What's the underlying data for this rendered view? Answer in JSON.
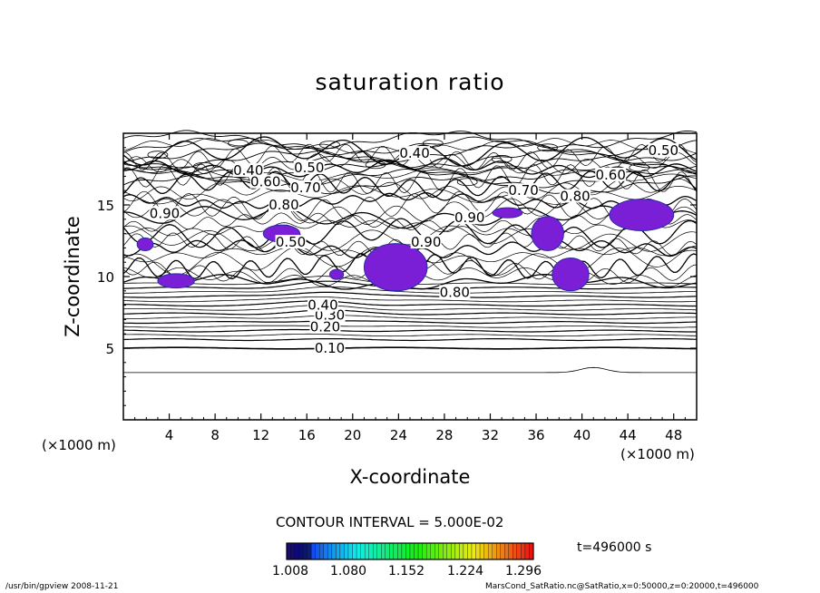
{
  "chart_data": {
    "type": "heatmap",
    "title": "saturation ratio",
    "xlabel": "X-coordinate",
    "ylabel": "Z-coordinate",
    "xunit": "(×1000 m)",
    "xlim": [
      0,
      50
    ],
    "ylim": [
      0,
      20
    ],
    "xticks": [
      4,
      8,
      12,
      16,
      20,
      24,
      28,
      32,
      36,
      40,
      44,
      48
    ],
    "yticks": [
      5,
      10,
      15
    ],
    "contour_interval_text": "CONTOUR INTERVAL = 5.000E-02",
    "time_text": "t=496000 s",
    "contour_labels": [
      {
        "text": "0.10",
        "x": 18.0,
        "y": 5.0
      },
      {
        "text": "0.20",
        "x": 17.6,
        "y": 6.5
      },
      {
        "text": "0.30",
        "x": 18.0,
        "y": 7.3
      },
      {
        "text": "0.40",
        "x": 17.4,
        "y": 8.0
      },
      {
        "text": "0.40",
        "x": 10.9,
        "y": 17.4
      },
      {
        "text": "0.40",
        "x": 25.4,
        "y": 18.6
      },
      {
        "text": "0.50",
        "x": 16.2,
        "y": 17.6
      },
      {
        "text": "0.50",
        "x": 47.1,
        "y": 18.8
      },
      {
        "text": "0.50",
        "x": 14.6,
        "y": 12.4
      },
      {
        "text": "0.60",
        "x": 12.4,
        "y": 16.6
      },
      {
        "text": "0.60",
        "x": 42.5,
        "y": 17.1
      },
      {
        "text": "0.70",
        "x": 15.9,
        "y": 16.2
      },
      {
        "text": "0.70",
        "x": 34.9,
        "y": 16.0
      },
      {
        "text": "0.80",
        "x": 14.0,
        "y": 15.0
      },
      {
        "text": "0.80",
        "x": 39.4,
        "y": 15.6
      },
      {
        "text": "0.80",
        "x": 28.9,
        "y": 8.9
      },
      {
        "text": "0.90",
        "x": 3.6,
        "y": 14.4
      },
      {
        "text": "0.90",
        "x": 26.4,
        "y": 12.4
      },
      {
        "text": "0.90",
        "x": 30.2,
        "y": 14.1
      }
    ],
    "supersaturated_regions": [
      {
        "x": [
          3.0,
          6.2
        ],
        "y": [
          9.2,
          10.2
        ]
      },
      {
        "x": [
          1.2,
          2.6
        ],
        "y": [
          11.8,
          12.7
        ]
      },
      {
        "x": [
          12.2,
          15.4
        ],
        "y": [
          12.4,
          13.6
        ]
      },
      {
        "x": [
          18.0,
          19.2
        ],
        "y": [
          9.8,
          10.5
        ]
      },
      {
        "x": [
          21.0,
          26.5
        ],
        "y": [
          9.0,
          12.3
        ]
      },
      {
        "x": [
          32.2,
          34.8
        ],
        "y": [
          14.1,
          14.8
        ]
      },
      {
        "x": [
          35.6,
          38.4
        ],
        "y": [
          11.8,
          14.2
        ]
      },
      {
        "x": [
          37.4,
          40.6
        ],
        "y": [
          9.0,
          11.3
        ]
      },
      {
        "x": [
          42.4,
          48.0
        ],
        "y": [
          13.2,
          15.4
        ]
      }
    ],
    "colorbar": {
      "min": 1.008,
      "max": 1.32,
      "ticks": [
        "1.008",
        "1.080",
        "1.152",
        "1.224",
        "1.296"
      ]
    }
  },
  "footer": {
    "left": "/usr/bin/gpview   2008-11-21",
    "right": "MarsCond_SatRatio.nc@SatRatio,x=0:50000,z=0:20000,t=496000"
  }
}
